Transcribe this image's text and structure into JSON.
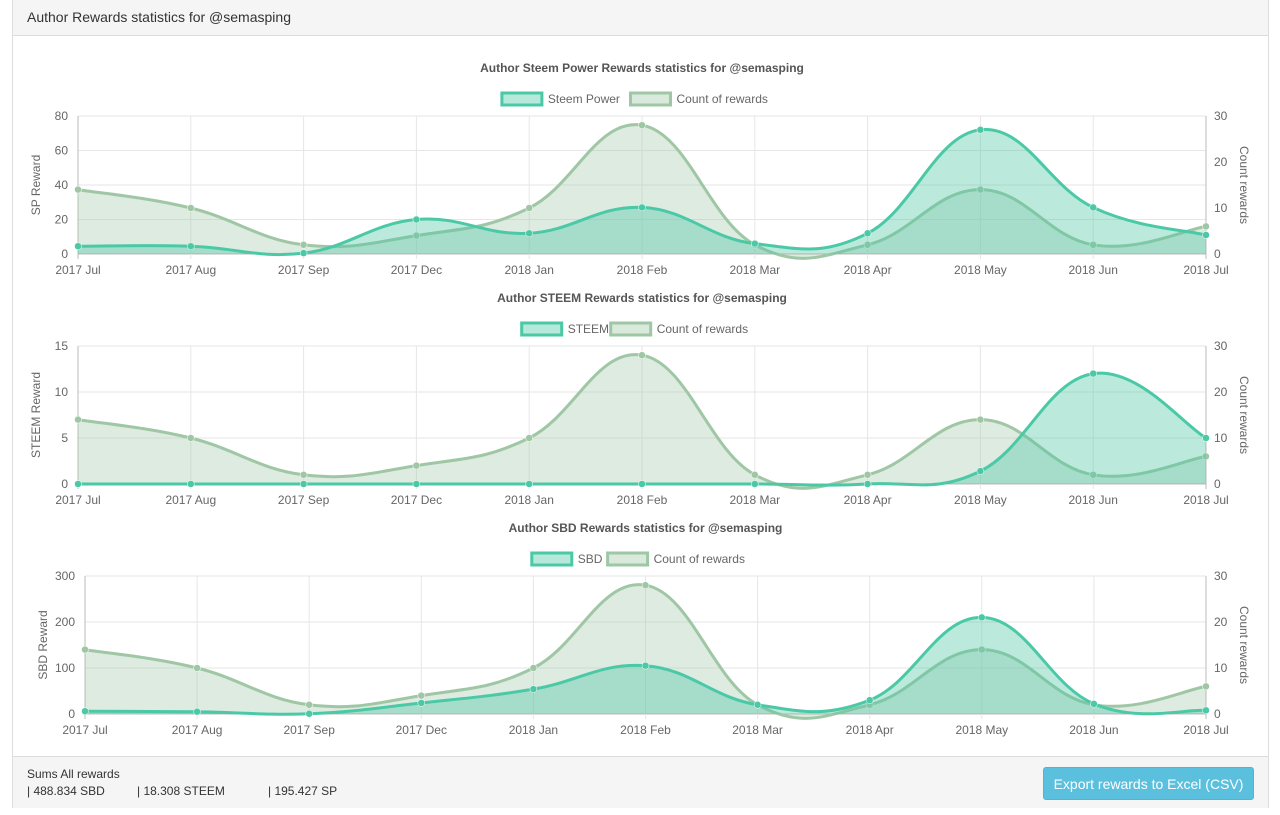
{
  "panel": {
    "title": "Author Rewards statistics for @semasping"
  },
  "footer": {
    "sums_title": "Sums All rewards",
    "sbd": "| 488.834 SBD",
    "steem": "| 18.308 STEEM",
    "sp": "| 195.427 SP",
    "export_label": "Export rewards to Excel (CSV)"
  },
  "colors": {
    "reward": "#4bc9a6",
    "count": "#9fc7a5"
  },
  "chart_data": [
    {
      "type": "line",
      "title": "Author Steem Power Rewards statistics for @semasping",
      "categories": [
        "2017 Jul",
        "2017 Aug",
        "2017 Sep",
        "2017 Dec",
        "2018 Jan",
        "2018 Feb",
        "2018 Mar",
        "2018 Apr",
        "2018 May",
        "2018 Jun",
        "2018 Jul"
      ],
      "series": [
        {
          "name": "Steem Power",
          "axis": "left",
          "values": [
            4.5,
            4.5,
            0.5,
            20,
            12,
            27,
            6,
            12,
            72,
            27,
            11
          ]
        },
        {
          "name": "Count of rewards",
          "axis": "right",
          "values": [
            14,
            10,
            2,
            4,
            10,
            28,
            2,
            2,
            14,
            2,
            6
          ]
        }
      ],
      "ylabel": "SP Reward",
      "y2label": "Count rewards",
      "ylim": [
        0,
        80
      ],
      "yticks": [
        0,
        20,
        40,
        60,
        80
      ],
      "y2lim": [
        0,
        30
      ],
      "y2ticks": [
        0,
        10,
        20,
        30
      ],
      "grid": true,
      "legend": "top"
    },
    {
      "type": "line",
      "title": "Author STEEM Rewards statistics for @semasping",
      "categories": [
        "2017 Jul",
        "2017 Aug",
        "2017 Sep",
        "2017 Dec",
        "2018 Jan",
        "2018 Feb",
        "2018 Mar",
        "2018 Apr",
        "2018 May",
        "2018 Jun",
        "2018 Jul"
      ],
      "series": [
        {
          "name": "STEEM",
          "axis": "left",
          "values": [
            0,
            0,
            0,
            0,
            0,
            0,
            0,
            0,
            1.4,
            12,
            5
          ]
        },
        {
          "name": "Count of rewards",
          "axis": "right",
          "values": [
            14,
            10,
            2,
            4,
            10,
            28,
            2,
            2,
            14,
            2,
            6
          ]
        }
      ],
      "ylabel": "STEEM Reward",
      "y2label": "Count rewards",
      "ylim": [
        0,
        15
      ],
      "yticks": [
        0,
        5,
        10,
        15
      ],
      "y2lim": [
        0,
        30
      ],
      "y2ticks": [
        0,
        10,
        20,
        30
      ],
      "grid": true,
      "legend": "top"
    },
    {
      "type": "line",
      "title": "Author SBD Rewards statistics for @semasping",
      "categories": [
        "2017 Jul",
        "2017 Aug",
        "2017 Sep",
        "2017 Dec",
        "2018 Jan",
        "2018 Feb",
        "2018 Mar",
        "2018 Apr",
        "2018 May",
        "2018 Jun",
        "2018 Jul"
      ],
      "series": [
        {
          "name": "SBD",
          "axis": "left",
          "values": [
            6,
            5,
            0.5,
            24,
            54,
            105,
            20,
            30,
            210,
            22,
            8
          ]
        },
        {
          "name": "Count of rewards",
          "axis": "right",
          "values": [
            14,
            10,
            2,
            4,
            10,
            28,
            2,
            2,
            14,
            2,
            6
          ]
        }
      ],
      "ylabel": "SBD Reward",
      "y2label": "Count rewards",
      "ylim": [
        0,
        300
      ],
      "yticks": [
        0,
        100,
        200,
        300
      ],
      "y2lim": [
        0,
        30
      ],
      "y2ticks": [
        0,
        10,
        20,
        30
      ],
      "grid": true,
      "legend": "top"
    }
  ]
}
